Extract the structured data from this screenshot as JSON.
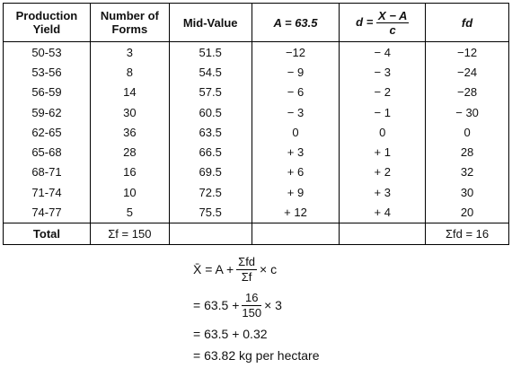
{
  "table": {
    "header": [
      "Production Yield",
      "Number of Forms",
      "Mid-Value",
      "A = 63.5",
      {
        "prefix": "d =",
        "numerator": "X − A",
        "denominator": "c"
      },
      "fd"
    ],
    "rows": [
      [
        "50-53",
        "3",
        "51.5",
        "−12",
        "− 4",
        "−12"
      ],
      [
        "53-56",
        "8",
        "54.5",
        "− 9",
        "− 3",
        "−24"
      ],
      [
        "56-59",
        "14",
        "57.5",
        "− 6",
        "− 2",
        "−28"
      ],
      [
        "59-62",
        "30",
        "60.5",
        "− 3",
        "− 1",
        "− 30"
      ],
      [
        "62-65",
        "36",
        "63.5",
        "0",
        "0",
        "0"
      ],
      [
        "65-68",
        "28",
        "66.5",
        "+ 3",
        "+ 1",
        "28"
      ],
      [
        "68-71",
        "16",
        "69.5",
        "+ 6",
        "+ 2",
        "32"
      ],
      [
        "71-74",
        "10",
        "72.5",
        "+ 9",
        "+ 3",
        "30"
      ],
      [
        "74-77",
        "5",
        "75.5",
        "+ 12",
        "+ 4",
        "20"
      ]
    ],
    "total": {
      "label": "Total",
      "sum_f": "Σf = 150",
      "sum_fd": "Σfd = 16"
    }
  },
  "formula": [
    {
      "before": "X̄ = A +",
      "numerator": "Σfd",
      "denominator": "Σf",
      "after": "× c"
    },
    {
      "before": "= 63.5 +",
      "numerator": "16",
      "denominator": "150",
      "after": "× 3"
    },
    {
      "text": "= 63.5 + 0.32"
    },
    {
      "text": "= 63.82 kg per hectare"
    }
  ]
}
